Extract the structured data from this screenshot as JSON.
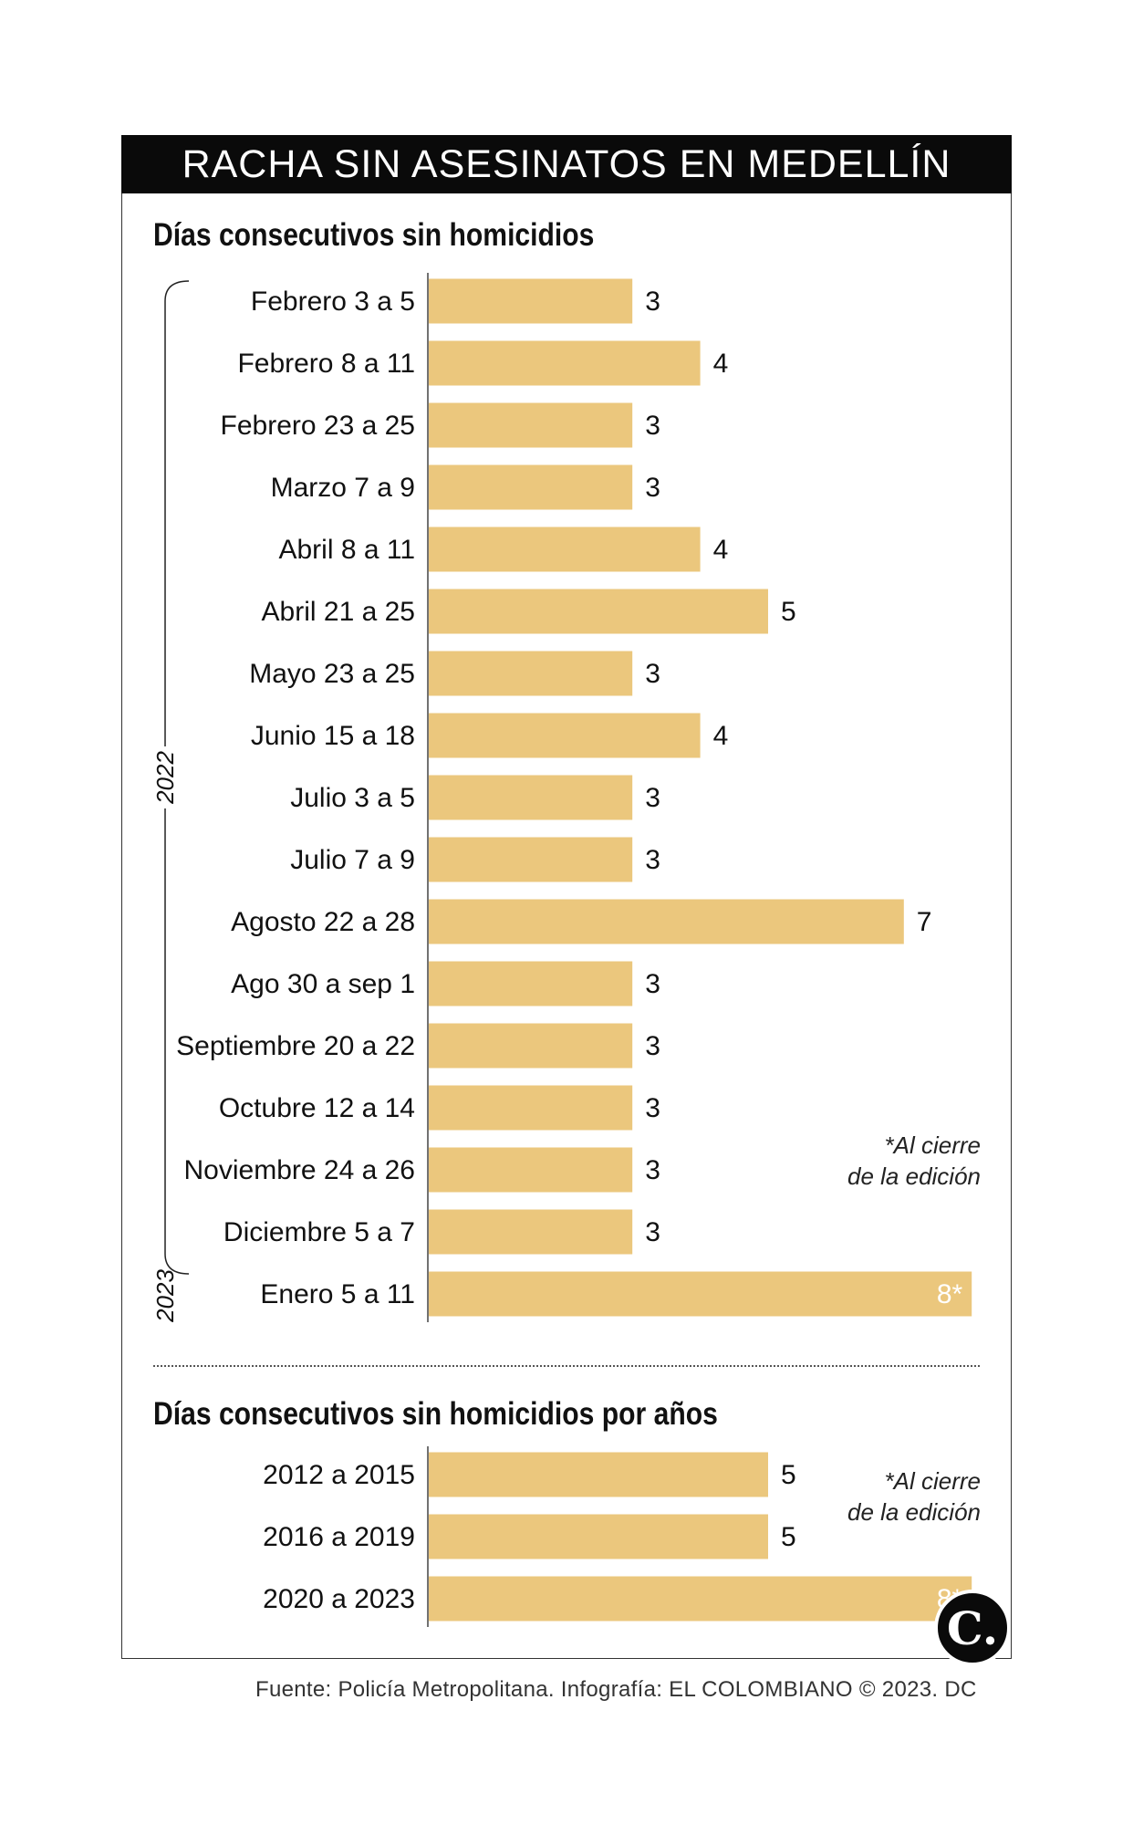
{
  "header": {
    "title": "RACHA SIN ASESINATOS EN MEDELLÍN"
  },
  "colors": {
    "bar": "#ebc77d",
    "title_bg": "#0a0a0a",
    "text": "#111111"
  },
  "chart_data": [
    {
      "type": "bar",
      "orientation": "horizontal",
      "title": "Días consecutivos sin homicidios",
      "categories": [
        "Febrero 3 a 5",
        "Febrero 8 a 11",
        "Febrero 23 a 25",
        "Marzo 7 a 9",
        "Abril 8 a 11",
        "Abril 21 a 25",
        "Mayo 23 a 25",
        "Junio 15 a 18",
        "Julio 3 a 5",
        "Julio 7 a 9",
        "Agosto 22 a 28",
        "Ago 30 a sep 1",
        "Septiembre 20 a 22",
        "Octubre 12 a 14",
        "Noviembre 24 a 26",
        "Diciembre 5 a 7",
        "Enero 5 a 11"
      ],
      "values": [
        3,
        4,
        3,
        3,
        4,
        5,
        3,
        4,
        3,
        3,
        7,
        3,
        3,
        3,
        3,
        3,
        8
      ],
      "value_labels": [
        "3",
        "4",
        "3",
        "3",
        "4",
        "5",
        "3",
        "4",
        "3",
        "3",
        "7",
        "3",
        "3",
        "3",
        "3",
        "3",
        "8*"
      ],
      "groups": [
        {
          "label": "2022",
          "from": 0,
          "to": 15
        },
        {
          "label": "2023",
          "from": 16,
          "to": 16
        }
      ],
      "xlim": [
        0,
        8
      ],
      "note": [
        "*Al cierre",
        "de la edición"
      ]
    },
    {
      "type": "bar",
      "orientation": "horizontal",
      "title": "Días consecutivos sin homicidios por años",
      "categories": [
        "2012 a 2015",
        "2016 a 2019",
        "2020 a 2023"
      ],
      "values": [
        5,
        5,
        8
      ],
      "value_labels": [
        "5",
        "5",
        "8*"
      ],
      "xlim": [
        0,
        8
      ],
      "note": [
        "*Al cierre",
        "de la edición"
      ]
    }
  ],
  "footer": {
    "source": "Fuente: Policía Metropolitana. Infografía: EL COLOMBIANO © 2023. DC",
    "logo_text": "C."
  }
}
